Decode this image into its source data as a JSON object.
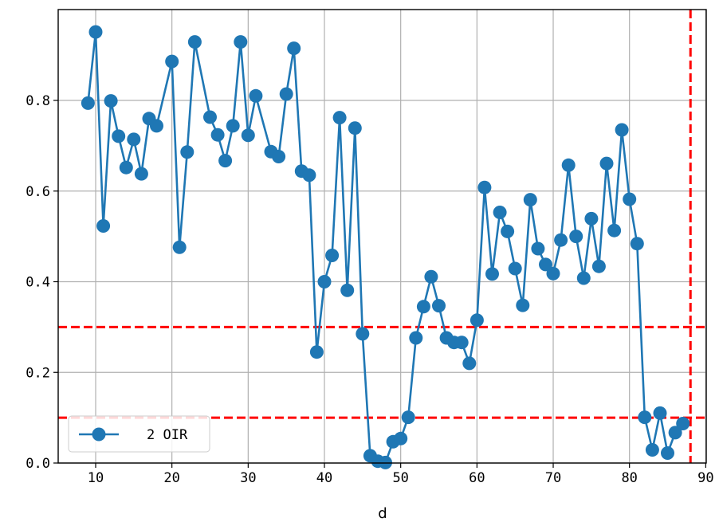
{
  "chart_data": {
    "type": "line",
    "title": "",
    "xlabel": "d",
    "ylabel": "",
    "xlim": [
      5,
      91
    ],
    "ylim": [
      0.0,
      1.0
    ],
    "x_ticks": [
      10,
      20,
      30,
      40,
      50,
      60,
      70,
      80,
      90
    ],
    "y_ticks": [
      0.0,
      0.2,
      0.4,
      0.6,
      0.8
    ],
    "y_tick_labels": [
      "0.0",
      "0.2",
      "0.4",
      "0.6",
      "0.8"
    ],
    "grid": true,
    "legend_position": "lower-left",
    "series": [
      {
        "name": "2 OIR",
        "color": "#1f77b4",
        "marker": "circle",
        "x": [
          9,
          10,
          11,
          12,
          13,
          14,
          15,
          16,
          17,
          18,
          20,
          21,
          22,
          23,
          25,
          26,
          27,
          28,
          29,
          30,
          31,
          33,
          34,
          35,
          36,
          37,
          38,
          39,
          40,
          41,
          42,
          43,
          44,
          45,
          46,
          47,
          48,
          49,
          50,
          51,
          52,
          53,
          54,
          55,
          56,
          57,
          58,
          59,
          60,
          61,
          62,
          63,
          64,
          65,
          66,
          67,
          68,
          69,
          70,
          71,
          72,
          73,
          74,
          75,
          76,
          77,
          78,
          79,
          80,
          81,
          82,
          83,
          84,
          85,
          86,
          87
        ],
        "y": [
          0.794,
          0.951,
          0.523,
          0.799,
          0.721,
          0.652,
          0.714,
          0.638,
          0.76,
          0.744,
          0.886,
          0.476,
          0.686,
          0.929,
          0.763,
          0.724,
          0.667,
          0.744,
          0.929,
          0.723,
          0.81,
          0.687,
          0.676,
          0.814,
          0.915,
          0.644,
          0.635,
          0.245,
          0.4,
          0.458,
          0.762,
          0.381,
          0.739,
          0.285,
          0.016,
          0.004,
          0.001,
          0.047,
          0.054,
          0.101,
          0.276,
          0.345,
          0.411,
          0.347,
          0.276,
          0.266,
          0.266,
          0.22,
          0.315,
          0.608,
          0.417,
          0.553,
          0.511,
          0.429,
          0.348,
          0.581,
          0.473,
          0.438,
          0.418,
          0.492,
          0.657,
          0.5,
          0.408,
          0.539,
          0.434,
          0.661,
          0.513,
          0.735,
          0.582,
          0.484,
          0.101,
          0.029,
          0.11,
          0.022,
          0.067,
          0.087
        ]
      }
    ],
    "reference_lines": [
      {
        "orientation": "horizontal",
        "value": 0.3,
        "color": "#ff0000",
        "style": "dashed"
      },
      {
        "orientation": "horizontal",
        "value": 0.1,
        "color": "#ff0000",
        "style": "dashed"
      },
      {
        "orientation": "vertical",
        "value": 88,
        "color": "#ff0000",
        "style": "dashed"
      }
    ]
  }
}
